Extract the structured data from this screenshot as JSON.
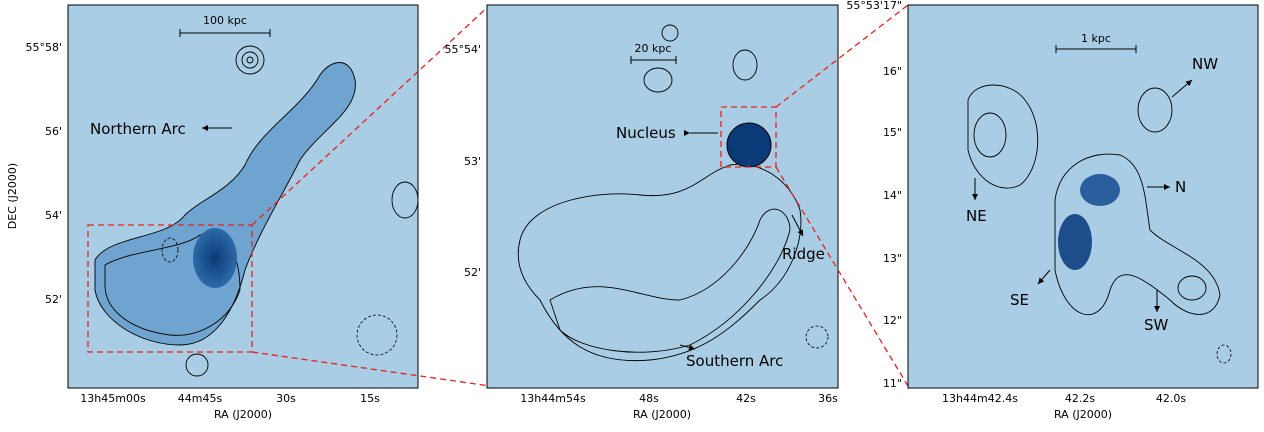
{
  "panels": [
    {
      "ylabel": "DEC (J2000)",
      "xlabel": "RA (J2000)",
      "yticks": [
        "55°58'",
        "56'",
        "54'",
        "52'"
      ],
      "xticks": [
        "13h45m00s",
        "44m45s",
        "30s",
        "15s"
      ],
      "scale_bar": "100 kpc",
      "annotations": [
        "Northern Arc"
      ]
    },
    {
      "xlabel": "RA (J2000)",
      "yticks": [
        "55°54'",
        "53'",
        "52'"
      ],
      "xticks": [
        "13h44m54s",
        "48s",
        "42s",
        "36s"
      ],
      "scale_bar": "20 kpc",
      "annotations": [
        "Nucleus",
        "Ridge",
        "Southern Arc"
      ]
    },
    {
      "xlabel": "RA (J2000)",
      "yticks": [
        "55°53'17\"",
        "16\"",
        "15\"",
        "14\"",
        "13\"",
        "12\"",
        "11\""
      ],
      "xticks": [
        "13h44m42.4s",
        "42.2s",
        "42.0s"
      ],
      "scale_bar": "1 kpc",
      "annotations": [
        "NW",
        "N",
        "NE",
        "SE",
        "SW"
      ]
    }
  ]
}
